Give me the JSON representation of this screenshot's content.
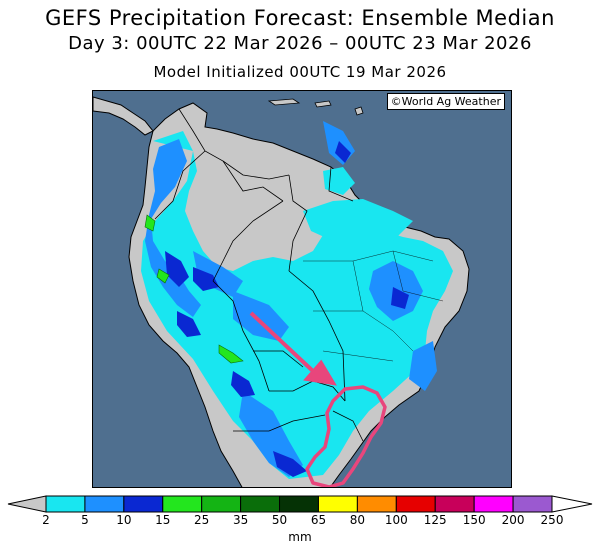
{
  "header": {
    "title": "GEFS Precipitation Forecast: Ensemble Median",
    "period": "Day 3: 00UTC 22 Mar 2026 – 00UTC 23 Mar 2026",
    "init": "Model Initialized 00UTC 19 Mar 2026"
  },
  "map": {
    "credit": "©World Ag Weather",
    "colors": {
      "ocean": "#4f6f8f",
      "land": "#c8c8c8",
      "annotation": "#e8467c"
    }
  },
  "colorbar": {
    "unit": "mm",
    "levels": [
      "2",
      "5",
      "10",
      "15",
      "25",
      "35",
      "50",
      "65",
      "80",
      "100",
      "125",
      "150",
      "200",
      "250"
    ],
    "colors": [
      "#19e6f0",
      "#1e90ff",
      "#0a28d2",
      "#23e61e",
      "#14b414",
      "#0a6e0a",
      "#053205",
      "#ffff00",
      "#ff8c00",
      "#e60000",
      "#c8005a",
      "#ff00ff",
      "#9b59d0"
    ],
    "below_color": "#c8c8c8",
    "above_color": "#ffffff"
  }
}
